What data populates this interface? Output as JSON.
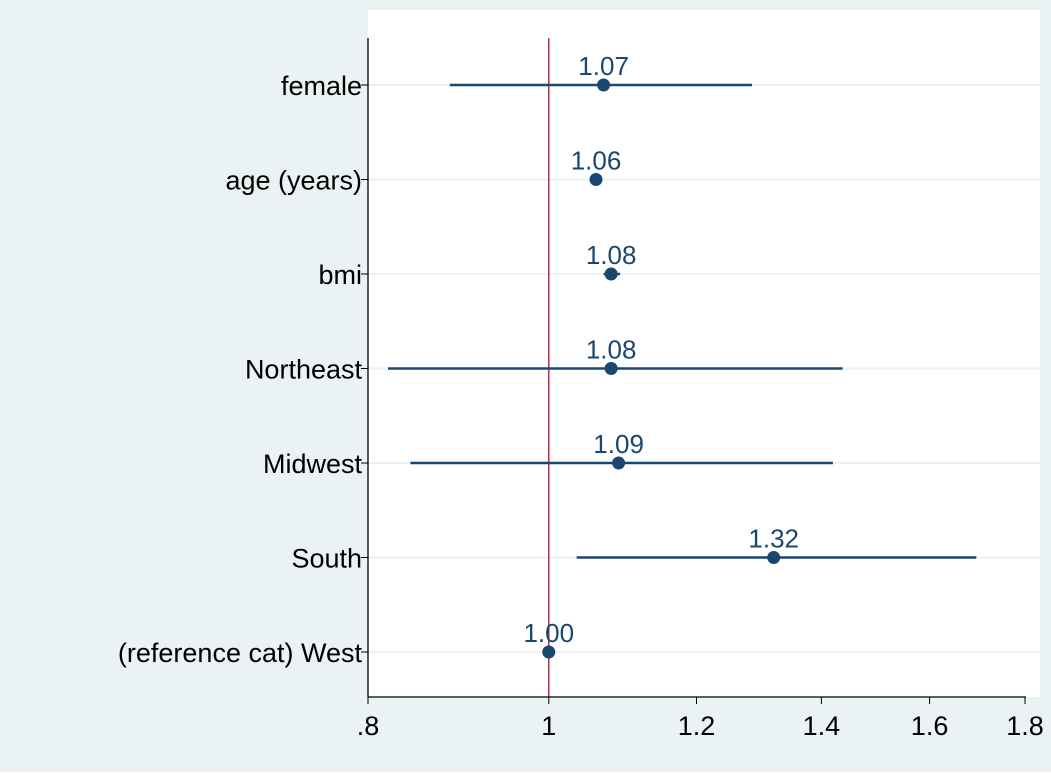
{
  "chart_data": {
    "type": "scatter",
    "subtype": "coefficient-plot",
    "title": "",
    "xlabel": "",
    "ylabel": "",
    "xscale": "log",
    "xlim": [
      0.8,
      1.8
    ],
    "xticks": [
      {
        "value": 0.8,
        "label": ".8"
      },
      {
        "value": 1.0,
        "label": "1"
      },
      {
        "value": 1.2,
        "label": "1.2"
      },
      {
        "value": 1.4,
        "label": "1.4"
      },
      {
        "value": 1.6,
        "label": "1.6"
      },
      {
        "value": 1.8,
        "label": "1.8"
      }
    ],
    "reference_line": 1.0,
    "grid": "horizontal",
    "legend": "none",
    "categories": [
      "female",
      "age (years)",
      "bmi",
      "Northeast",
      "Midwest",
      "South",
      "(reference cat) West"
    ],
    "series": [
      {
        "values": [
          1.07,
          1.06,
          1.08,
          1.08,
          1.09,
          1.32,
          1.0
        ],
        "ci_low": [
          0.885,
          1.06,
          1.07,
          0.82,
          0.843,
          1.035,
          1.0
        ],
        "ci_high": [
          1.285,
          1.06,
          1.092,
          1.437,
          1.42,
          1.695,
          1.0
        ],
        "labels": [
          "1.07",
          "1.06",
          "1.08",
          "1.08",
          "1.09",
          "1.32",
          "1.00"
        ]
      }
    ],
    "colors": {
      "marker": "#1a476f",
      "reference": "#b0203a",
      "outer_bg": "#eaf2f3",
      "plot_bg": "#ffffff",
      "grid": "#eaf2f3",
      "axis": "#000000"
    }
  }
}
